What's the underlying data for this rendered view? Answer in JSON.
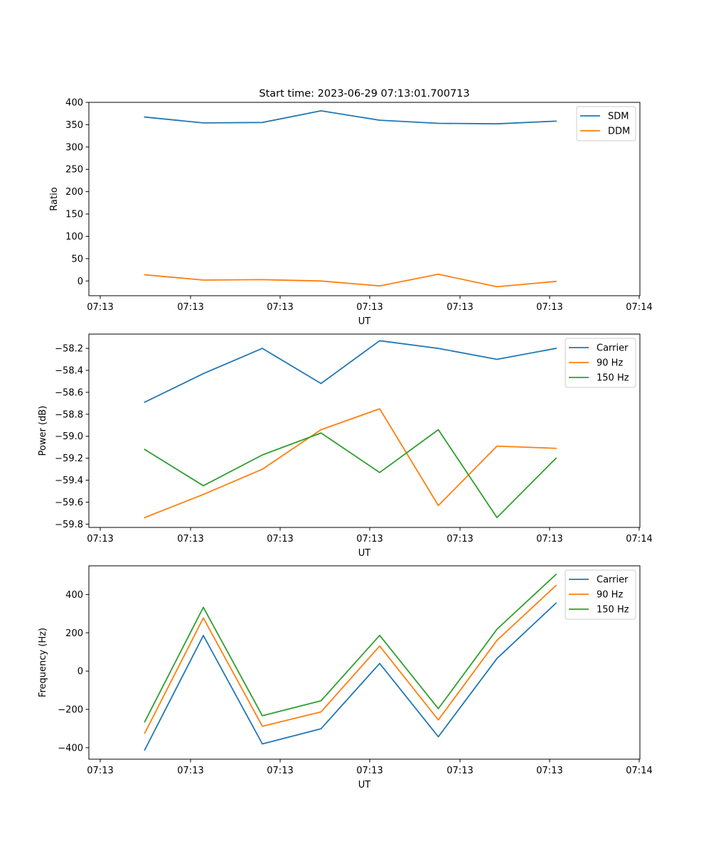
{
  "figure": {
    "title": "Start time: 2023-06-29 07:13:01.700713"
  },
  "colors": {
    "blue": "#1f77b4",
    "orange": "#ff7f0e",
    "green": "#2ca02c"
  },
  "chart_data": [
    {
      "type": "line",
      "title": "Start time: 2023-06-29 07:13:01.700713",
      "xlabel": "UT",
      "ylabel": "Ratio",
      "x_tick_labels": [
        "07:13",
        "07:13",
        "07:13",
        "07:13",
        "07:13",
        "07:13",
        "07:14"
      ],
      "x_axis_note": "8 samples, evenly spaced in time",
      "ylim": [
        -33,
        400
      ],
      "y_ticks": [
        0,
        50,
        100,
        150,
        200,
        250,
        300,
        350,
        400
      ],
      "y_tick_labels": [
        "0",
        "50",
        "100",
        "150",
        "200",
        "250",
        "300",
        "350",
        "400"
      ],
      "legend": "top-right",
      "grid": false,
      "series": [
        {
          "name": "SDM",
          "color": "#1f77b4",
          "values": [
            367,
            354,
            355,
            381,
            360,
            353,
            352,
            358
          ]
        },
        {
          "name": "DDM",
          "color": "#ff7f0e",
          "values": [
            14,
            2,
            3,
            0,
            -11,
            15,
            -13,
            -1
          ]
        }
      ]
    },
    {
      "type": "line",
      "xlabel": "UT",
      "ylabel": "Power (dB)",
      "x_tick_labels": [
        "07:13",
        "07:13",
        "07:13",
        "07:13",
        "07:13",
        "07:13",
        "07:14"
      ],
      "ylim": [
        -59.83,
        -58.07
      ],
      "y_ticks": [
        -59.8,
        -59.6,
        -59.4,
        -59.2,
        -59.0,
        -58.8,
        -58.6,
        -58.4,
        -58.2
      ],
      "y_tick_labels": [
        "−59.8",
        "−59.6",
        "−59.4",
        "−59.2",
        "−59.0",
        "−58.8",
        "−58.6",
        "−58.4",
        "−58.2"
      ],
      "legend": "top-right",
      "grid": false,
      "series": [
        {
          "name": "Carrier",
          "color": "#1f77b4",
          "values": [
            -58.69,
            -58.43,
            -58.2,
            -58.52,
            -58.13,
            -58.2,
            -58.3,
            -58.2
          ]
        },
        {
          "name": "90 Hz",
          "color": "#ff7f0e",
          "values": [
            -59.74,
            -59.53,
            -59.3,
            -58.94,
            -58.75,
            -59.63,
            -59.09,
            -59.11
          ]
        },
        {
          "name": "150 Hz",
          "color": "#2ca02c",
          "values": [
            -59.12,
            -59.45,
            -59.17,
            -58.97,
            -59.33,
            -58.94,
            -59.74,
            -59.2
          ]
        }
      ]
    },
    {
      "type": "line",
      "xlabel": "UT",
      "ylabel": "Frequency (Hz)",
      "x_tick_labels": [
        "07:13",
        "07:13",
        "07:13",
        "07:13",
        "07:13",
        "07:13",
        "07:14"
      ],
      "ylim": [
        -460,
        550
      ],
      "y_ticks": [
        -400,
        -200,
        0,
        200,
        400
      ],
      "y_tick_labels": [
        "−400",
        "−200",
        "0",
        "200",
        "400"
      ],
      "legend": "top-right",
      "grid": false,
      "series": [
        {
          "name": "Carrier",
          "color": "#1f77b4",
          "values": [
            -412,
            186,
            -380,
            -301,
            40,
            -343,
            66,
            355
          ]
        },
        {
          "name": "90 Hz",
          "color": "#ff7f0e",
          "values": [
            -325,
            278,
            -288,
            -213,
            131,
            -255,
            161,
            447
          ]
        },
        {
          "name": "150 Hz",
          "color": "#2ca02c",
          "values": [
            -265,
            333,
            -233,
            -155,
            187,
            -196,
            219,
            505
          ]
        }
      ]
    }
  ]
}
